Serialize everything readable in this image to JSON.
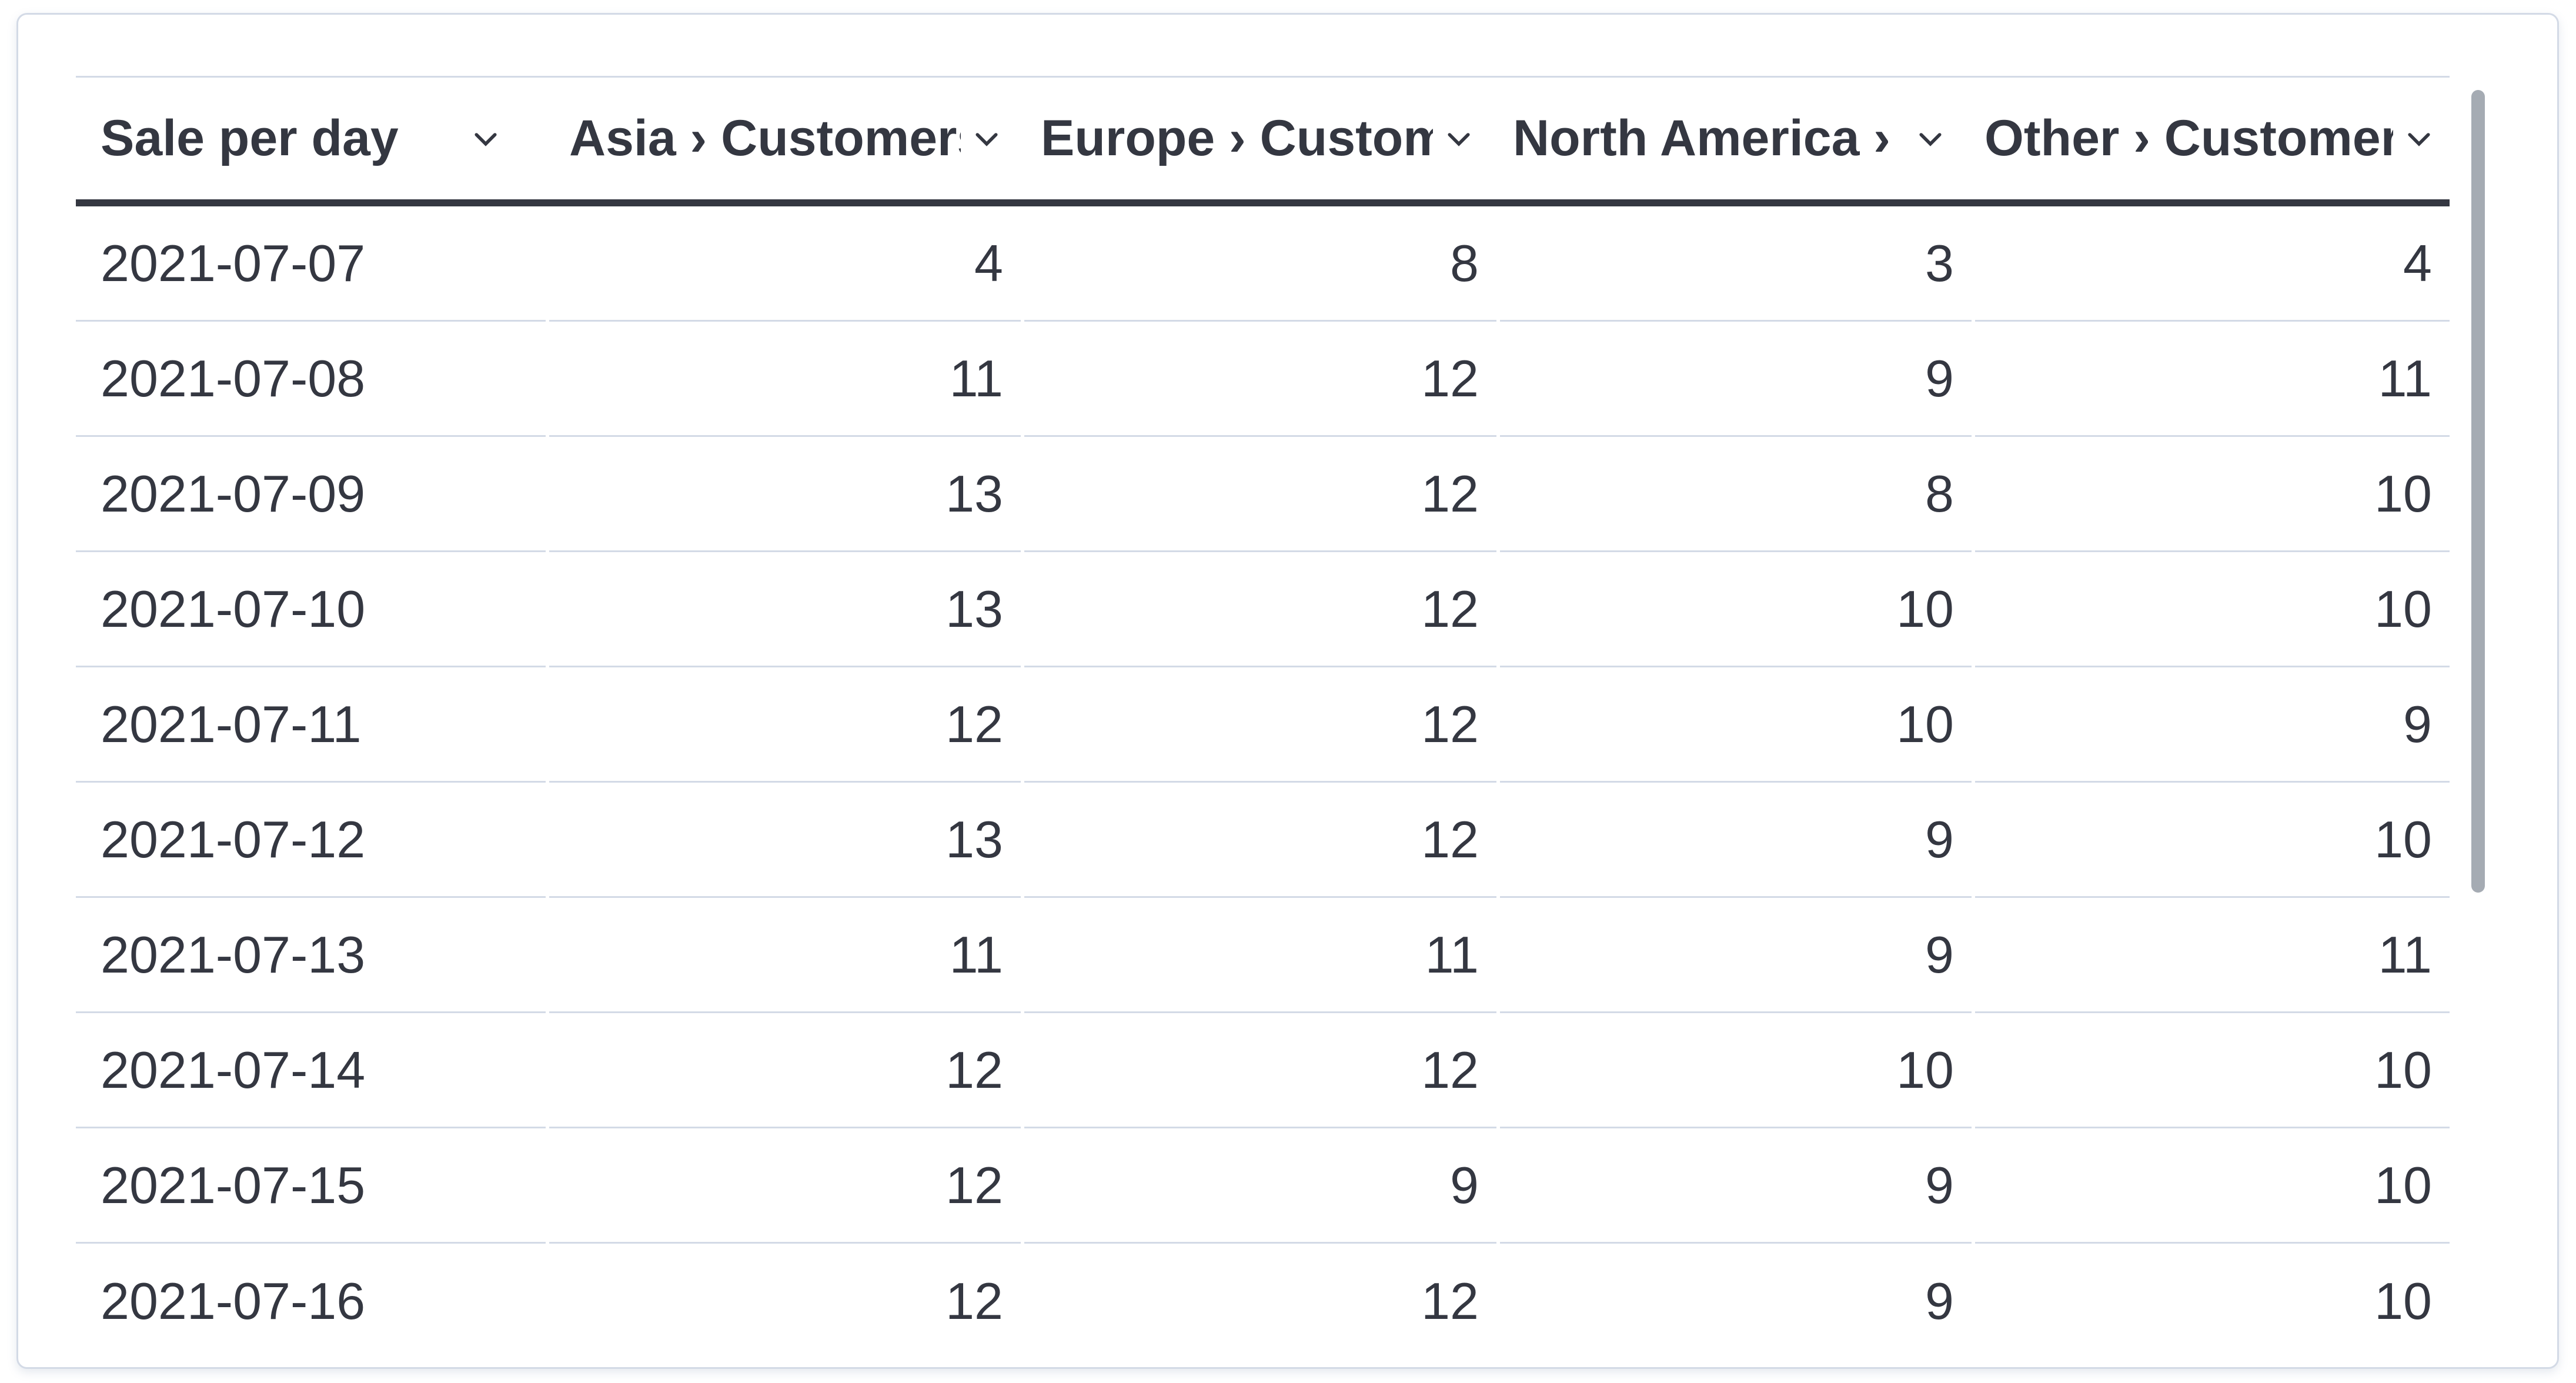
{
  "table": {
    "title": "Sale per day table",
    "columns": [
      {
        "label": "Sale per day",
        "align": "left"
      },
      {
        "label": "Asia › Customers",
        "align": "right"
      },
      {
        "label": "Europe › Customer",
        "align": "right"
      },
      {
        "label": "North America › C",
        "align": "right"
      },
      {
        "label": "Other › Customers",
        "align": "right"
      }
    ],
    "sort_icon": "chevron-down-icon",
    "rows": [
      {
        "date": "2021-07-07",
        "values": [
          4,
          8,
          3,
          4
        ]
      },
      {
        "date": "2021-07-08",
        "values": [
          11,
          12,
          9,
          11
        ]
      },
      {
        "date": "2021-07-09",
        "values": [
          13,
          12,
          8,
          10
        ]
      },
      {
        "date": "2021-07-10",
        "values": [
          13,
          12,
          10,
          10
        ]
      },
      {
        "date": "2021-07-11",
        "values": [
          12,
          12,
          10,
          9
        ]
      },
      {
        "date": "2021-07-12",
        "values": [
          13,
          12,
          9,
          10
        ]
      },
      {
        "date": "2021-07-13",
        "values": [
          11,
          11,
          9,
          11
        ]
      },
      {
        "date": "2021-07-14",
        "values": [
          12,
          12,
          10,
          10
        ]
      },
      {
        "date": "2021-07-15",
        "values": [
          12,
          9,
          9,
          10
        ]
      },
      {
        "date": "2021-07-16",
        "values": [
          12,
          12,
          9,
          10
        ]
      }
    ]
  },
  "chart_data": {
    "type": "table",
    "title": "Sale per day",
    "categories": [
      "2021-07-07",
      "2021-07-08",
      "2021-07-09",
      "2021-07-10",
      "2021-07-11",
      "2021-07-12",
      "2021-07-13",
      "2021-07-14",
      "2021-07-15",
      "2021-07-16"
    ],
    "series": [
      {
        "name": "Asia › Customers",
        "values": [
          4,
          11,
          13,
          13,
          12,
          13,
          11,
          12,
          12,
          12
        ]
      },
      {
        "name": "Europe › Customers",
        "values": [
          8,
          12,
          12,
          12,
          12,
          12,
          11,
          12,
          9,
          12
        ]
      },
      {
        "name": "North America › Customers",
        "values": [
          3,
          9,
          8,
          10,
          10,
          9,
          9,
          10,
          9,
          9
        ]
      },
      {
        "name": "Other › Customers",
        "values": [
          4,
          11,
          10,
          10,
          9,
          10,
          11,
          10,
          10,
          10
        ]
      }
    ]
  },
  "colors": {
    "text": "#343741",
    "row_border": "#d3dae6",
    "header_rule": "#343741",
    "card_border": "#d3dae6",
    "scrollbar_thumb": "#a5abb3",
    "background": "#ffffff"
  },
  "scrollbar": {
    "orientation": "vertical",
    "position": "top"
  }
}
